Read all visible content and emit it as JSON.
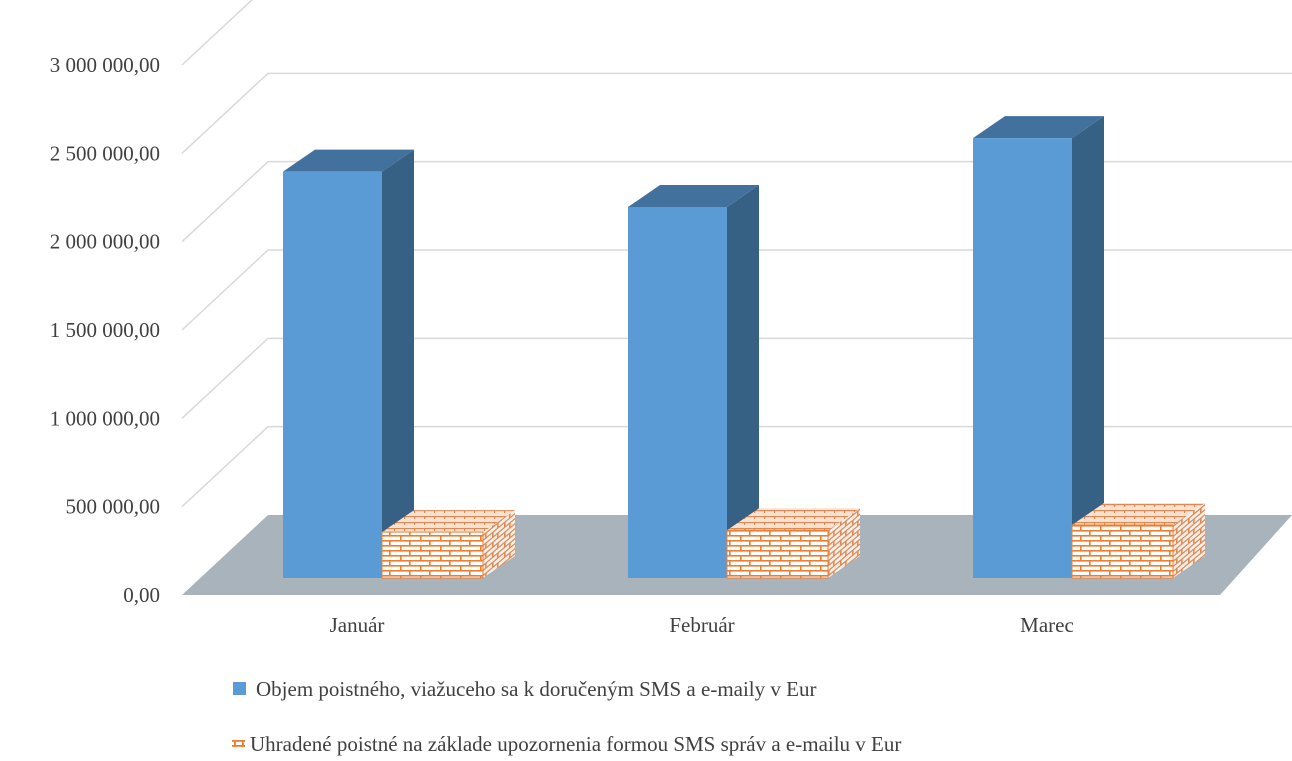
{
  "chart_data": {
    "type": "bar",
    "title": "",
    "xlabel": "",
    "ylabel": "",
    "categories": [
      "Január",
      "Február",
      "Marec"
    ],
    "series": [
      {
        "name": "Objem poistného, viažuceho sa k doručeným SMS a     e-maily v Eur",
        "values": [
          2300000,
          2100000,
          2490000
        ]
      },
      {
        "name": "Uhradené poistné na základe upozornenia formou SMS správ a e-mailu v Eur",
        "values": [
          260000,
          270000,
          300000
        ]
      }
    ],
    "ylim": [
      0,
      3000000
    ],
    "y_ticks": [
      "0,00",
      "500 000,00",
      "1 000 000,00",
      "1 500 000,00",
      "2 000 000,00",
      "2 500 000,00",
      "3 000 000,00"
    ],
    "grid": true,
    "style": "3d-clustered-column",
    "legend_position": "bottom",
    "colors": {
      "series1_front": "#5b9bd5",
      "series1_top": "#41719c",
      "series1_side": "#376184",
      "series2_brick": "#ed7d31",
      "floor": "#a9b3bb",
      "grid": "#d9d9d9"
    }
  }
}
